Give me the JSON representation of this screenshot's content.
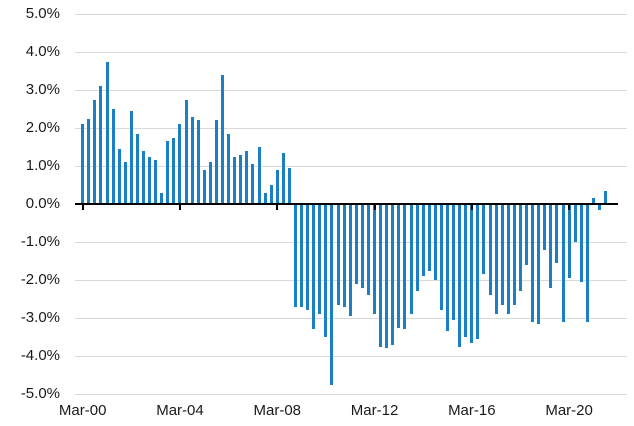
{
  "chart_data": {
    "type": "bar",
    "title": "",
    "xlabel": "",
    "ylabel": "",
    "grid": true,
    "legend": false,
    "ylim": [
      -5,
      5
    ],
    "ytick_step": 1,
    "ytick_labels": [
      "5.0%",
      "4.0%",
      "3.0%",
      "2.0%",
      "1.0%",
      "0.0%",
      "-1.0%",
      "-2.0%",
      "-3.0%",
      "-4.0%",
      "-5.0%"
    ],
    "xtick_labels": [
      "Mar-00",
      "Mar-04",
      "Mar-08",
      "Mar-12",
      "Mar-16",
      "Mar-20"
    ],
    "xtick_indices": [
      0,
      16,
      32,
      48,
      64,
      80
    ],
    "bar_color": "#1b7fc4",
    "gridline_color": "#d9d9d9",
    "axis_color": "#000000",
    "x": [
      "Mar-00",
      "Jun-00",
      "Sep-00",
      "Dec-00",
      "Mar-01",
      "Jun-01",
      "Sep-01",
      "Dec-01",
      "Mar-02",
      "Jun-02",
      "Sep-02",
      "Dec-02",
      "Mar-03",
      "Jun-03",
      "Sep-03",
      "Dec-03",
      "Mar-04",
      "Jun-04",
      "Sep-04",
      "Dec-04",
      "Mar-05",
      "Jun-05",
      "Sep-05",
      "Dec-05",
      "Mar-06",
      "Jun-06",
      "Sep-06",
      "Dec-06",
      "Mar-07",
      "Jun-07",
      "Sep-07",
      "Dec-07",
      "Mar-08",
      "Jun-08",
      "Sep-08",
      "Dec-08",
      "Mar-09",
      "Jun-09",
      "Sep-09",
      "Dec-09",
      "Mar-10",
      "Jun-10",
      "Sep-10",
      "Dec-10",
      "Mar-11",
      "Jun-11",
      "Sep-11",
      "Dec-11",
      "Mar-12",
      "Jun-12",
      "Sep-12",
      "Dec-12",
      "Mar-13",
      "Jun-13",
      "Sep-13",
      "Dec-13",
      "Mar-14",
      "Jun-14",
      "Sep-14",
      "Dec-14",
      "Mar-15",
      "Jun-15",
      "Sep-15",
      "Dec-15",
      "Mar-16",
      "Jun-16",
      "Sep-16",
      "Dec-16",
      "Mar-17",
      "Jun-17",
      "Sep-17",
      "Dec-17",
      "Mar-18",
      "Jun-18",
      "Sep-18",
      "Dec-18",
      "Mar-19",
      "Jun-19",
      "Sep-19",
      "Dec-19",
      "Mar-20",
      "Jun-20",
      "Sep-20",
      "Dec-20",
      "Mar-21",
      "Jun-21",
      "Sep-21"
    ],
    "values": [
      2.1,
      2.25,
      2.75,
      3.1,
      3.75,
      2.5,
      1.45,
      1.1,
      2.45,
      1.85,
      1.4,
      1.25,
      1.15,
      0.3,
      1.65,
      1.75,
      2.1,
      2.75,
      2.3,
      2.2,
      0.9,
      1.1,
      2.2,
      3.4,
      1.85,
      1.25,
      1.3,
      1.4,
      1.05,
      1.5,
      0.3,
      0.5,
      0.9,
      1.35,
      0.95,
      -2.7,
      -2.7,
      -2.8,
      -3.3,
      -2.9,
      -3.5,
      -4.75,
      -2.65,
      -2.7,
      -2.95,
      -2.1,
      -2.2,
      -2.4,
      -2.9,
      -3.75,
      -3.8,
      -3.7,
      -3.25,
      -3.3,
      -2.9,
      -2.3,
      -1.9,
      -1.75,
      -2.0,
      -2.8,
      -3.35,
      -3.05,
      -3.75,
      -3.5,
      -3.65,
      -3.55,
      -1.85,
      -2.4,
      -2.9,
      -2.65,
      -2.9,
      -2.65,
      -2.3,
      -1.6,
      -3.1,
      -3.15,
      -1.2,
      -2.2,
      -1.55,
      -3.1,
      -1.95,
      -1.0,
      -2.05,
      -3.1,
      0.15,
      -0.15,
      0.35
    ]
  }
}
